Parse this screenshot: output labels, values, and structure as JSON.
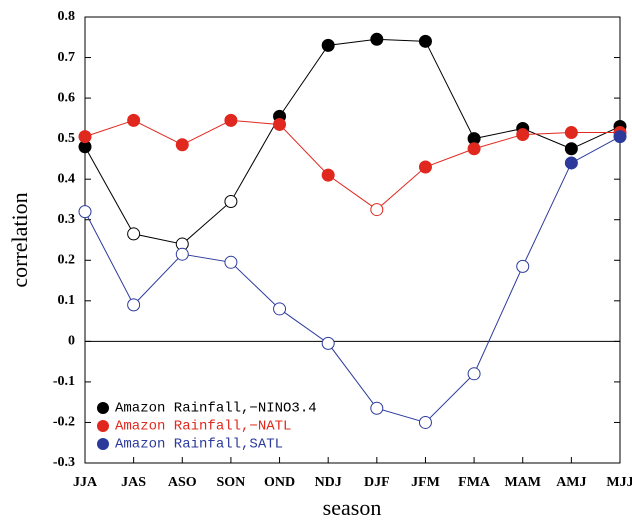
{
  "chart_data": {
    "type": "line",
    "x_label": "season",
    "y_label": "correlation",
    "categories": [
      "JJA",
      "JAS",
      "ASO",
      "SON",
      "OND",
      "NDJ",
      "DJF",
      "JFM",
      "FMA",
      "MAM",
      "AMJ",
      "MJJ"
    ],
    "series": [
      {
        "name": "Amazon Rainfall,−NINO3.4",
        "color": "#000000",
        "values": [
          0.48,
          0.265,
          0.24,
          0.345,
          0.555,
          0.73,
          0.745,
          0.74,
          0.5,
          0.525,
          0.475,
          0.53
        ],
        "filled": [
          true,
          false,
          false,
          false,
          true,
          true,
          true,
          true,
          true,
          true,
          true,
          true
        ]
      },
      {
        "name": "Amazon Rainfall,−NATL",
        "color": "#e0281e",
        "values": [
          0.505,
          0.545,
          0.485,
          0.545,
          0.535,
          0.41,
          0.325,
          0.43,
          0.475,
          0.51,
          0.515,
          0.515
        ],
        "filled": [
          true,
          true,
          true,
          true,
          true,
          true,
          false,
          true,
          true,
          true,
          true,
          true
        ]
      },
      {
        "name": "Amazon Rainfall,SATL",
        "color": "#2b3a9b",
        "values": [
          0.32,
          0.09,
          0.215,
          0.195,
          0.08,
          -0.005,
          -0.165,
          -0.2,
          -0.08,
          0.185,
          0.44,
          0.505
        ],
        "filled": [
          false,
          false,
          false,
          false,
          false,
          false,
          false,
          false,
          false,
          false,
          true,
          true
        ]
      }
    ],
    "ylim": [
      -0.3,
      0.8
    ],
    "yticks": [
      -0.3,
      -0.2,
      -0.1,
      0,
      0.1,
      0.2,
      0.3,
      0.4,
      0.5,
      0.6,
      0.7,
      0.8
    ],
    "zero_line": true,
    "legend": "lower left"
  }
}
